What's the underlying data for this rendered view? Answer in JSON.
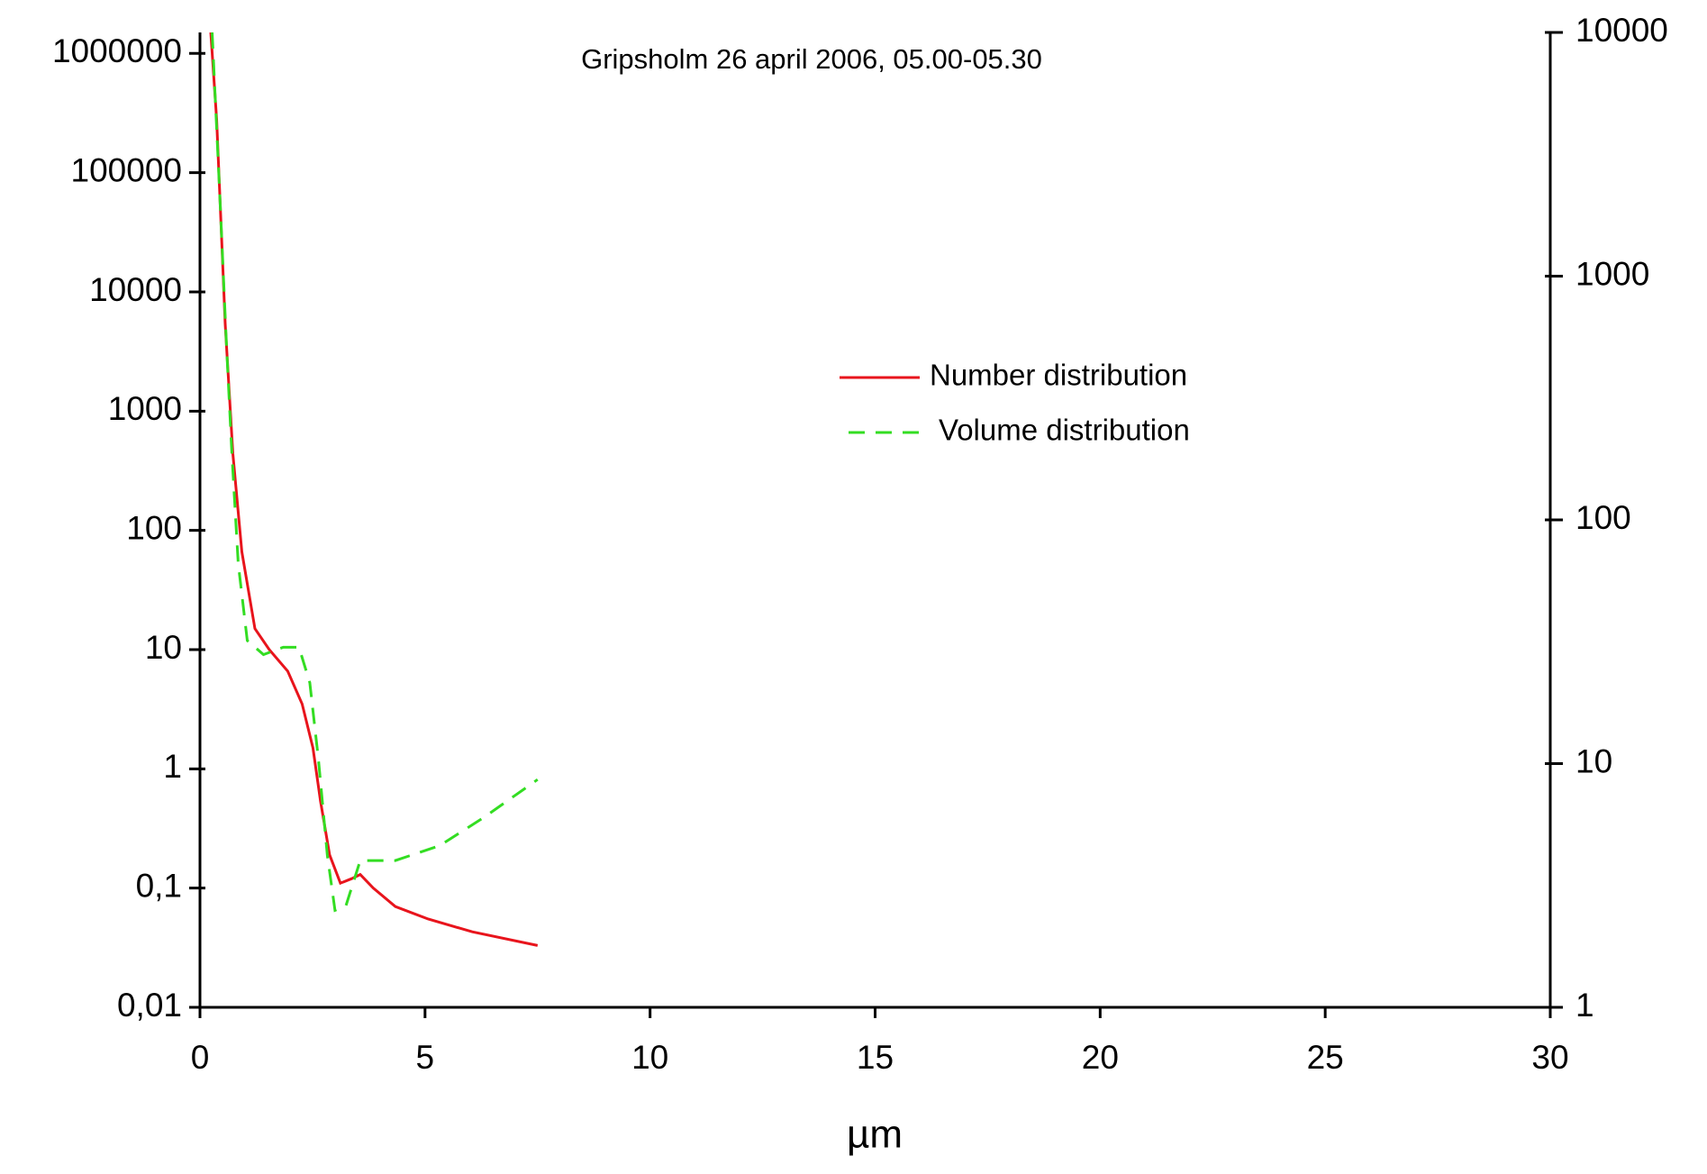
{
  "chart_data": {
    "type": "line",
    "title": "Gripsholm 26 april 2006, 05.00-05.30",
    "x_label": "µm",
    "xlim": [
      0,
      30
    ],
    "xticks": [
      0,
      5,
      10,
      15,
      20,
      25,
      30
    ],
    "ylim": [
      0.01,
      1500000
    ],
    "yticks": [
      {
        "value": 0.01,
        "label": "0,01"
      },
      {
        "value": 0.1,
        "label": "0,1"
      },
      1,
      10,
      100,
      1000,
      10000,
      100000,
      1000000
    ],
    "y_log": true,
    "y2lim": [
      1,
      10000
    ],
    "y2ticks": [
      1,
      10,
      100,
      1000,
      10000
    ],
    "y2_log": true,
    "grid": false,
    "legend": "center",
    "series": [
      {
        "name": "Number distribution",
        "color": "#e8141c",
        "dash": false,
        "x": [
          0.24,
          0.37,
          0.56,
          0.73,
          0.93,
          1.22,
          1.54,
          1.95,
          2.27,
          2.51,
          2.68,
          2.88,
          3.12,
          3.37,
          3.56,
          3.85,
          4.34,
          5.07,
          6.05,
          7.5
        ],
        "values": [
          1500000,
          280000,
          5400,
          440,
          66,
          15,
          10,
          6.6,
          3.5,
          1.5,
          0.53,
          0.19,
          0.11,
          0.12,
          0.13,
          0.1,
          0.07,
          0.055,
          0.043,
          0.033
        ]
      },
      {
        "name": "Volume distribution",
        "color": "#33dd22",
        "dash": true,
        "axis": "y2",
        "x": [
          0.27,
          0.44,
          0.59,
          0.71,
          0.85,
          1.05,
          1.41,
          1.85,
          2.2,
          2.44,
          2.63,
          2.83,
          3.0,
          3.24,
          3.56,
          4.34,
          5.32,
          6.3,
          7.5
        ],
        "values": [
          10000,
          2150,
          514,
          185,
          66,
          32,
          28,
          30,
          30,
          21.5,
          10.5,
          4.2,
          2.5,
          2.6,
          4.0,
          4.0,
          4.6,
          6.0,
          8.6
        ]
      }
    ]
  }
}
